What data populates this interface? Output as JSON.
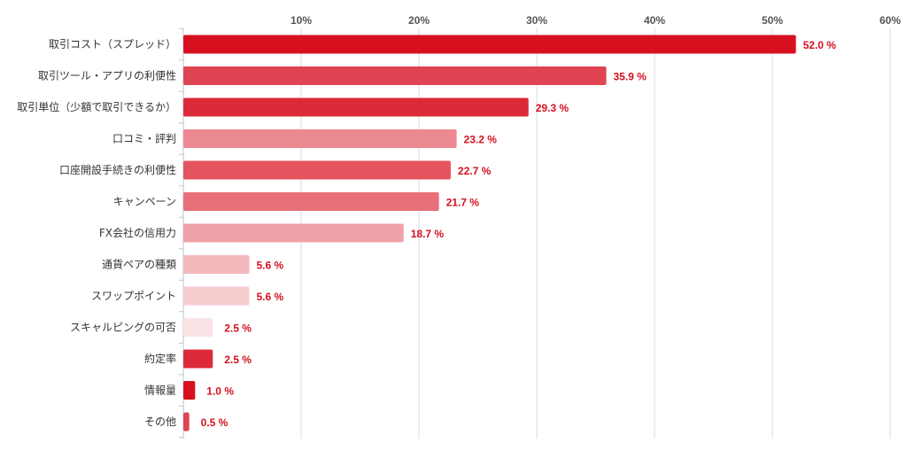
{
  "chart_data": {
    "type": "bar",
    "orientation": "horizontal",
    "categories": [
      "取引コスト（スプレッド）",
      "取引ツール・アプリの利便性",
      "取引単位（少額で取引できるか）",
      "口コミ・評判",
      "口座開設手続きの利便性",
      "キャンペーン",
      "FX会社の信用力",
      "通貨ペアの種類",
      "スワップポイント",
      "スキャルピングの可否",
      "約定率",
      "情報量",
      "その他"
    ],
    "values": [
      52.0,
      35.9,
      29.3,
      23.2,
      22.7,
      21.7,
      18.7,
      5.6,
      5.6,
      2.5,
      2.5,
      1.0,
      0.5
    ],
    "value_labels": [
      "52.0 %",
      "35.9 %",
      "29.3 %",
      "23.2 %",
      "22.7 %",
      "21.7 %",
      "18.7 %",
      "5.6 %",
      "5.6 %",
      "2.5 %",
      "2.5 %",
      "1.0 %",
      "0.5 %"
    ],
    "bar_colors": [
      "#d7101f",
      "#e04452",
      "#dd2a38",
      "#ec8a91",
      "#e4545f",
      "#e8707a",
      "#f0a1a7",
      "#f3b8bc",
      "#f7cdd0",
      "#fae3e5",
      "#dd2a38",
      "#d7101f",
      "#e04452"
    ],
    "xlim": [
      0,
      60
    ],
    "tick_values": [
      10,
      20,
      30,
      40,
      50,
      60
    ],
    "tick_labels": [
      "10%",
      "20%",
      "30%",
      "40%",
      "50%",
      "60%"
    ],
    "label_color": "#d4101f",
    "grid_color": "#d6dce6",
    "axis_color": "#b9c3d3",
    "xlabel": "",
    "ylabel": "",
    "grid": true,
    "legend": false
  }
}
